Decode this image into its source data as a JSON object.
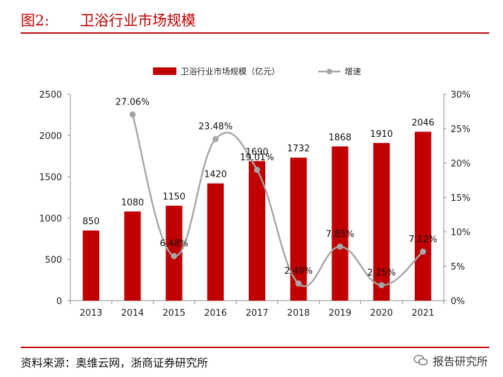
{
  "figure": {
    "number": "图2:",
    "title": "卫浴行业市场规模",
    "source": "资料来源：奥维云网，浙商证券研究所",
    "watermark": "报告研究所"
  },
  "colors": {
    "brand": "#c00000",
    "bar": "#c00000",
    "line": "#a6a6a6"
  },
  "chart_data": {
    "type": "bar",
    "categories": [
      "2013",
      "2014",
      "2015",
      "2016",
      "2017",
      "2018",
      "2019",
      "2020",
      "2021"
    ],
    "series": [
      {
        "name": "卫浴行业市场规模（亿元）",
        "type": "bar",
        "axis": "left",
        "values": [
          850,
          1080,
          1150,
          1420,
          1690,
          1732,
          1868,
          1910,
          2046
        ],
        "labels": [
          "850",
          "1080",
          "1150",
          "1420",
          "1690",
          "1732",
          "1868",
          "1910",
          "2046"
        ]
      },
      {
        "name": "增速",
        "type": "line",
        "axis": "right",
        "values": [
          null,
          27.06,
          6.48,
          23.48,
          19.01,
          2.49,
          7.85,
          2.25,
          7.12
        ],
        "labels": [
          "",
          "27.06%",
          "6.48%",
          "23.48%",
          "19.01%",
          "2.49%",
          "7.85%",
          "2.25%",
          "7.12%"
        ]
      }
    ],
    "y_left": {
      "ylim": [
        0,
        2500
      ],
      "ticks": [
        "0",
        "500",
        "1000",
        "1500",
        "2000",
        "2500"
      ]
    },
    "y_right": {
      "ylim": [
        0,
        30
      ],
      "ticks": [
        "0%",
        "5%",
        "10%",
        "15%",
        "20%",
        "25%",
        "30%"
      ]
    },
    "legend_position": "top",
    "grid": false
  }
}
